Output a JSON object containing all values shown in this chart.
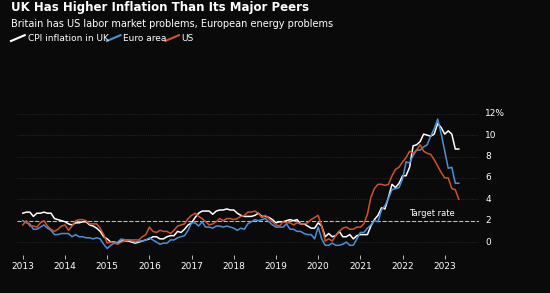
{
  "title": "UK Has Higher Inflation Than Its Major Peers",
  "subtitle": "Britain has US labor market problems, European energy problems",
  "legend": [
    "CPI inflation in UK",
    "Euro area",
    "US"
  ],
  "legend_colors": [
    "#ffffff",
    "#4a90d9",
    "#d0522a"
  ],
  "background_color": "#0a0a0a",
  "text_color": "#ffffff",
  "grid_color": "#3a3a3a",
  "target_rate": 2.0,
  "ylim": [
    -1.2,
    12.5
  ],
  "yticks": [
    0,
    2,
    4,
    6,
    8,
    10
  ],
  "ytop_label": "12%",
  "ylabel_suffix": "%",
  "xmin": 2012.85,
  "xmax": 2023.8,
  "xtick_years": [
    2013,
    2014,
    2015,
    2016,
    2017,
    2018,
    2019,
    2020,
    2021,
    2022,
    2023
  ],
  "uk_dates": [
    2013.0,
    2013.083,
    2013.167,
    2013.25,
    2013.333,
    2013.417,
    2013.5,
    2013.583,
    2013.667,
    2013.75,
    2013.833,
    2013.917,
    2014.0,
    2014.083,
    2014.167,
    2014.25,
    2014.333,
    2014.417,
    2014.5,
    2014.583,
    2014.667,
    2014.75,
    2014.833,
    2014.917,
    2015.0,
    2015.083,
    2015.167,
    2015.25,
    2015.333,
    2015.417,
    2015.5,
    2015.583,
    2015.667,
    2015.75,
    2015.833,
    2015.917,
    2016.0,
    2016.083,
    2016.167,
    2016.25,
    2016.333,
    2016.417,
    2016.5,
    2016.583,
    2016.667,
    2016.75,
    2016.833,
    2016.917,
    2017.0,
    2017.083,
    2017.167,
    2017.25,
    2017.333,
    2017.417,
    2017.5,
    2017.583,
    2017.667,
    2017.75,
    2017.833,
    2017.917,
    2018.0,
    2018.083,
    2018.167,
    2018.25,
    2018.333,
    2018.417,
    2018.5,
    2018.583,
    2018.667,
    2018.75,
    2018.833,
    2018.917,
    2019.0,
    2019.083,
    2019.167,
    2019.25,
    2019.333,
    2019.417,
    2019.5,
    2019.583,
    2019.667,
    2019.75,
    2019.833,
    2019.917,
    2020.0,
    2020.083,
    2020.167,
    2020.25,
    2020.333,
    2020.417,
    2020.5,
    2020.583,
    2020.667,
    2020.75,
    2020.833,
    2020.917,
    2021.0,
    2021.083,
    2021.167,
    2021.25,
    2021.333,
    2021.417,
    2021.5,
    2021.583,
    2021.667,
    2021.75,
    2021.833,
    2021.917,
    2022.0,
    2022.083,
    2022.167,
    2022.25,
    2022.333,
    2022.417,
    2022.5,
    2022.583,
    2022.667,
    2022.75,
    2022.833,
    2022.917,
    2023.0,
    2023.083,
    2023.167,
    2023.25,
    2023.333
  ],
  "uk_values": [
    2.7,
    2.8,
    2.8,
    2.4,
    2.7,
    2.7,
    2.8,
    2.7,
    2.7,
    2.2,
    2.1,
    2.0,
    1.9,
    1.7,
    1.6,
    1.8,
    1.8,
    1.9,
    1.9,
    1.6,
    1.5,
    1.3,
    1.0,
    0.5,
    0.3,
    0.0,
    0.0,
    -0.1,
    0.1,
    0.1,
    0.1,
    0.0,
    -0.1,
    0.0,
    0.1,
    0.2,
    0.3,
    0.5,
    0.5,
    0.3,
    0.3,
    0.5,
    0.6,
    0.6,
    1.0,
    0.9,
    1.2,
    1.6,
    1.8,
    2.3,
    2.7,
    2.9,
    2.9,
    2.9,
    2.6,
    2.9,
    3.0,
    3.0,
    3.1,
    3.0,
    3.0,
    2.7,
    2.5,
    2.4,
    2.4,
    2.4,
    2.5,
    2.7,
    2.4,
    2.4,
    2.3,
    2.1,
    1.8,
    1.9,
    1.9,
    2.0,
    2.1,
    2.0,
    2.1,
    1.7,
    1.7,
    1.5,
    1.3,
    1.3,
    1.8,
    1.5,
    0.5,
    0.8,
    0.5,
    0.6,
    1.0,
    0.5,
    0.5,
    0.7,
    0.3,
    0.6,
    0.7,
    0.7,
    0.7,
    1.5,
    2.1,
    2.5,
    3.2,
    3.1,
    4.2,
    5.4,
    5.1,
    5.5,
    6.2,
    6.2,
    7.0,
    9.0,
    9.1,
    9.4,
    10.1,
    10.0,
    9.9,
    10.1,
    11.1,
    10.7,
    10.1,
    10.4,
    10.1,
    8.7,
    8.7
  ],
  "euro_dates": [
    2013.0,
    2013.083,
    2013.167,
    2013.25,
    2013.333,
    2013.417,
    2013.5,
    2013.583,
    2013.667,
    2013.75,
    2013.833,
    2013.917,
    2014.0,
    2014.083,
    2014.167,
    2014.25,
    2014.333,
    2014.417,
    2014.5,
    2014.583,
    2014.667,
    2014.75,
    2014.833,
    2014.917,
    2015.0,
    2015.083,
    2015.167,
    2015.25,
    2015.333,
    2015.417,
    2015.5,
    2015.583,
    2015.667,
    2015.75,
    2015.833,
    2015.917,
    2016.0,
    2016.083,
    2016.167,
    2016.25,
    2016.333,
    2016.417,
    2016.5,
    2016.583,
    2016.667,
    2016.75,
    2016.833,
    2016.917,
    2017.0,
    2017.083,
    2017.167,
    2017.25,
    2017.333,
    2017.417,
    2017.5,
    2017.583,
    2017.667,
    2017.75,
    2017.833,
    2017.917,
    2018.0,
    2018.083,
    2018.167,
    2018.25,
    2018.333,
    2018.417,
    2018.5,
    2018.583,
    2018.667,
    2018.75,
    2018.833,
    2018.917,
    2019.0,
    2019.083,
    2019.167,
    2019.25,
    2019.333,
    2019.417,
    2019.5,
    2019.583,
    2019.667,
    2019.75,
    2019.833,
    2019.917,
    2020.0,
    2020.083,
    2020.167,
    2020.25,
    2020.333,
    2020.417,
    2020.5,
    2020.583,
    2020.667,
    2020.75,
    2020.833,
    2020.917,
    2021.0,
    2021.083,
    2021.167,
    2021.25,
    2021.333,
    2021.417,
    2021.5,
    2021.583,
    2021.667,
    2021.75,
    2021.833,
    2021.917,
    2022.0,
    2022.083,
    2022.167,
    2022.25,
    2022.333,
    2022.417,
    2022.5,
    2022.583,
    2022.667,
    2022.75,
    2022.833,
    2022.917,
    2023.0,
    2023.083,
    2023.167,
    2023.25,
    2023.333
  ],
  "euro_values": [
    2.0,
    1.8,
    1.7,
    1.2,
    1.2,
    1.4,
    1.6,
    1.3,
    1.1,
    0.7,
    0.7,
    0.8,
    0.8,
    0.8,
    0.5,
    0.7,
    0.5,
    0.5,
    0.4,
    0.4,
    0.3,
    0.4,
    0.3,
    -0.2,
    -0.6,
    -0.3,
    -0.1,
    0.0,
    0.3,
    0.2,
    0.2,
    0.1,
    0.0,
    0.1,
    0.1,
    0.2,
    0.4,
    0.2,
    0.0,
    -0.2,
    -0.1,
    -0.1,
    0.2,
    0.2,
    0.4,
    0.5,
    0.6,
    1.1,
    1.8,
    1.8,
    1.5,
    1.9,
    1.4,
    1.4,
    1.3,
    1.5,
    1.5,
    1.4,
    1.5,
    1.4,
    1.3,
    1.1,
    1.3,
    1.2,
    1.7,
    1.9,
    2.1,
    2.0,
    2.1,
    2.2,
    1.9,
    1.6,
    1.4,
    1.4,
    1.4,
    1.7,
    1.2,
    1.2,
    1.0,
    1.0,
    0.8,
    0.7,
    0.7,
    0.3,
    1.4,
    0.3,
    -0.3,
    -0.3,
    -0.1,
    -0.3,
    -0.3,
    -0.2,
    0.0,
    -0.3,
    -0.3,
    0.3,
    0.9,
    0.9,
    1.3,
    1.6,
    2.0,
    1.9,
    3.0,
    3.4,
    4.1,
    4.9,
    5.0,
    5.1,
    5.9,
    7.5,
    7.4,
    8.1,
    8.6,
    8.6,
    8.9,
    9.1,
    9.9,
    10.6,
    11.5,
    10.1,
    8.5,
    6.9,
    7.0,
    5.5,
    5.5
  ],
  "us_dates": [
    2013.0,
    2013.083,
    2013.167,
    2013.25,
    2013.333,
    2013.417,
    2013.5,
    2013.583,
    2013.667,
    2013.75,
    2013.833,
    2013.917,
    2014.0,
    2014.083,
    2014.167,
    2014.25,
    2014.333,
    2014.417,
    2014.5,
    2014.583,
    2014.667,
    2014.75,
    2014.833,
    2014.917,
    2015.0,
    2015.083,
    2015.167,
    2015.25,
    2015.333,
    2015.417,
    2015.5,
    2015.583,
    2015.667,
    2015.75,
    2015.833,
    2015.917,
    2016.0,
    2016.083,
    2016.167,
    2016.25,
    2016.333,
    2016.417,
    2016.5,
    2016.583,
    2016.667,
    2016.75,
    2016.833,
    2016.917,
    2017.0,
    2017.083,
    2017.167,
    2017.25,
    2017.333,
    2017.417,
    2017.5,
    2017.583,
    2017.667,
    2017.75,
    2017.833,
    2017.917,
    2018.0,
    2018.083,
    2018.167,
    2018.25,
    2018.333,
    2018.417,
    2018.5,
    2018.583,
    2018.667,
    2018.75,
    2018.833,
    2018.917,
    2019.0,
    2019.083,
    2019.167,
    2019.25,
    2019.333,
    2019.417,
    2019.5,
    2019.583,
    2019.667,
    2019.75,
    2019.833,
    2019.917,
    2020.0,
    2020.083,
    2020.167,
    2020.25,
    2020.333,
    2020.417,
    2020.5,
    2020.583,
    2020.667,
    2020.75,
    2020.833,
    2020.917,
    2021.0,
    2021.083,
    2021.167,
    2021.25,
    2021.333,
    2021.417,
    2021.5,
    2021.583,
    2021.667,
    2021.75,
    2021.833,
    2021.917,
    2022.0,
    2022.083,
    2022.167,
    2022.25,
    2022.333,
    2022.417,
    2022.5,
    2022.583,
    2022.667,
    2022.75,
    2022.833,
    2022.917,
    2023.0,
    2023.083,
    2023.167,
    2023.25,
    2023.333
  ],
  "us_values": [
    1.6,
    2.0,
    1.5,
    1.5,
    1.4,
    1.8,
    2.0,
    1.5,
    1.2,
    1.0,
    1.2,
    1.5,
    1.6,
    1.1,
    1.5,
    2.0,
    2.1,
    2.1,
    2.0,
    1.7,
    1.7,
    1.7,
    1.3,
    0.7,
    -0.1,
    0.0,
    -0.1,
    -0.2,
    0.0,
    0.1,
    0.2,
    0.2,
    0.2,
    0.2,
    0.5,
    0.7,
    1.4,
    1.0,
    0.9,
    1.1,
    1.0,
    1.0,
    0.8,
    1.1,
    1.5,
    1.6,
    1.7,
    2.2,
    2.5,
    2.7,
    2.4,
    2.2,
    1.9,
    1.6,
    1.7,
    1.9,
    2.2,
    2.0,
    2.2,
    2.2,
    2.1,
    2.2,
    2.4,
    2.5,
    2.8,
    2.8,
    2.9,
    2.7,
    2.3,
    2.5,
    2.2,
    1.9,
    1.6,
    1.5,
    1.9,
    1.8,
    1.8,
    1.6,
    1.8,
    1.7,
    1.7,
    1.8,
    2.1,
    2.3,
    2.5,
    1.5,
    0.1,
    0.3,
    0.1,
    0.6,
    1.0,
    1.3,
    1.4,
    1.2,
    1.2,
    1.4,
    1.4,
    1.7,
    2.6,
    4.2,
    5.0,
    5.4,
    5.4,
    5.3,
    5.4,
    6.2,
    6.8,
    7.0,
    7.5,
    7.9,
    8.5,
    8.3,
    8.6,
    9.1,
    8.5,
    8.3,
    8.2,
    7.7,
    7.1,
    6.5,
    6.0,
    6.0,
    5.0,
    4.9,
    4.0
  ]
}
